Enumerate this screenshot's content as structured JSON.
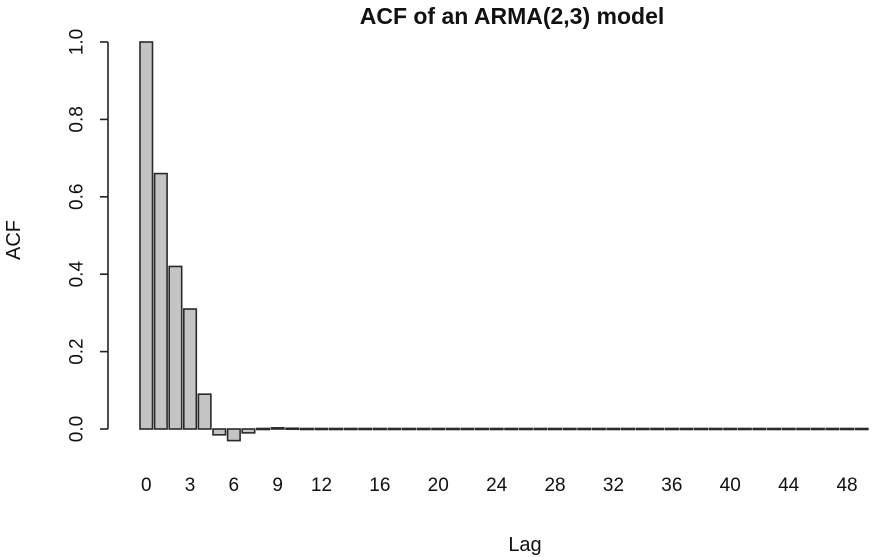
{
  "chart_data": {
    "type": "bar",
    "title": "ACF of an ARMA(2,3) model",
    "xlabel": "Lag",
    "ylabel": "ACF",
    "ylim": [
      0,
      1
    ],
    "y_ticks": [
      "0.0",
      "0.2",
      "0.4",
      "0.6",
      "0.8",
      "1.0"
    ],
    "x_tick_labels": [
      "0",
      "3",
      "6",
      "9",
      "12",
      "16",
      "20",
      "24",
      "28",
      "32",
      "36",
      "40",
      "44",
      "48"
    ],
    "categories": [
      0,
      1,
      2,
      3,
      4,
      5,
      6,
      7,
      8,
      9,
      10,
      11,
      12,
      13,
      14,
      15,
      16,
      17,
      18,
      19,
      20,
      21,
      22,
      23,
      24,
      25,
      26,
      27,
      28,
      29,
      30,
      31,
      32,
      33,
      34,
      35,
      36,
      37,
      38,
      39,
      40,
      41,
      42,
      43,
      44,
      45,
      46,
      47,
      48,
      49
    ],
    "values": [
      1.0,
      0.66,
      0.42,
      0.31,
      0.09,
      -0.015,
      -0.03,
      -0.01,
      0.0,
      0.003,
      0.002,
      0.001,
      0,
      0,
      0,
      0,
      0,
      0,
      0,
      0,
      0,
      0,
      0,
      0,
      0,
      0,
      0,
      0,
      0,
      0,
      0,
      0,
      0,
      0,
      0,
      0,
      0,
      0,
      0,
      0,
      0,
      0,
      0,
      0,
      0,
      0,
      0,
      0,
      0,
      0
    ],
    "grid": false,
    "legend": "none",
    "colors": {
      "bar_fill": "#c4c4c4",
      "bar_stroke": "#2a2a2a"
    }
  }
}
